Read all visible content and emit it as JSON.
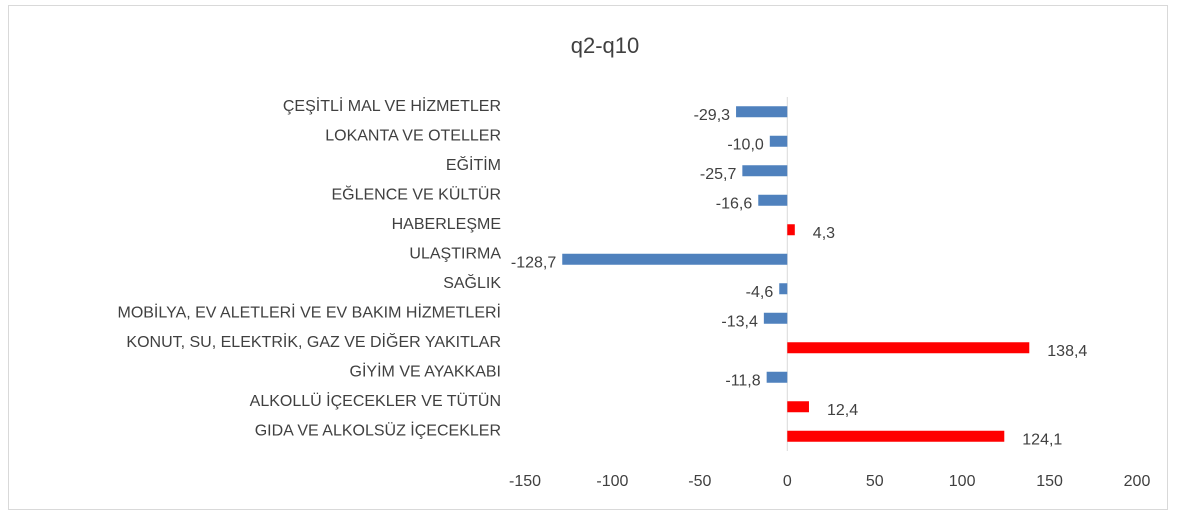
{
  "chart_data": {
    "type": "barh",
    "title": "q2-q10",
    "categories": [
      "GIDA VE ALKOLSÜZ İÇECEKLER",
      "ALKOLLÜ İÇECEKLER VE TÜTÜN",
      "GİYİM VE AYAKKABI",
      "KONUT, SU, ELEKTRİK, GAZ VE DİĞER YAKITLAR",
      "MOBİLYA, EV ALETLERİ VE EV BAKIM HİZMETLERİ",
      "SAĞLIK",
      "ULAŞTIRMA",
      "HABERLEŞME",
      "EĞLENCE VE KÜLTÜR",
      "EĞİTİM",
      "LOKANTA VE OTELLER",
      "ÇEŞİTLİ MAL VE HİZMETLER"
    ],
    "values": [
      124.1,
      12.4,
      -11.8,
      138.4,
      -13.4,
      -4.6,
      -128.7,
      4.3,
      -16.6,
      -25.7,
      -10.0,
      -29.3
    ],
    "value_labels": [
      "124,1",
      "12,4",
      "-11,8",
      "138,4",
      "-13,4",
      "-4,6",
      "-128,7",
      "4,3",
      "-16,6",
      "-25,7",
      "-10,0",
      "-29,3"
    ],
    "positive_color": "#ff0000",
    "negative_color": "#4f81bd",
    "xlim": [
      -150,
      200
    ],
    "xticks": [
      -150,
      -100,
      -50,
      0,
      50,
      100,
      150,
      200
    ],
    "grid": false
  }
}
